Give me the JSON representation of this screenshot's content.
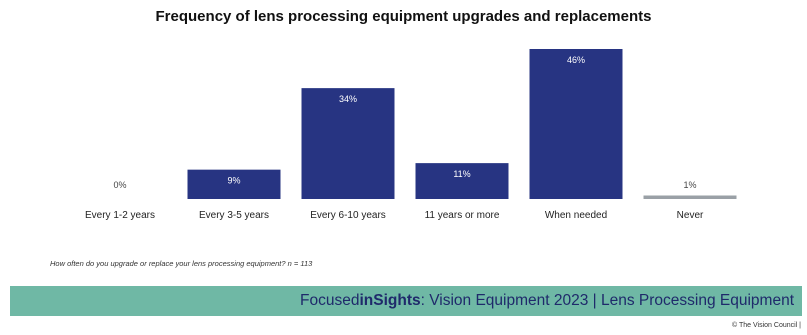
{
  "chart_data": {
    "type": "bar",
    "title": "Frequency of lens processing equipment upgrades and replacements",
    "categories": [
      "Every 1-2 years",
      "Every 3-5 years",
      "Every 6-10 years",
      "11 years or more",
      "When needed",
      "Never"
    ],
    "values": [
      0,
      9,
      34,
      11,
      46,
      1
    ],
    "value_labels": [
      "0%",
      "9%",
      "34%",
      "11%",
      "46%",
      "1%"
    ],
    "ylim": [
      0,
      46
    ],
    "grid": false,
    "legend": "none",
    "colors": {
      "bar": "#273482",
      "never_bar": "#9aa0a6",
      "label_on_bar": "#ffffff",
      "label_outside": "#444444"
    }
  },
  "footnote": "How often do you upgrade or replace your lens processing equipment? n = 113",
  "footer": {
    "text_pre": "Focused ",
    "text_bold": "inSights",
    "text_post": ": Vision Equipment 2023 | Lens Processing Equipment",
    "background": "#6fb8a5",
    "text_color": "#1f2a6b"
  },
  "copyright": "© The Vision Council |"
}
